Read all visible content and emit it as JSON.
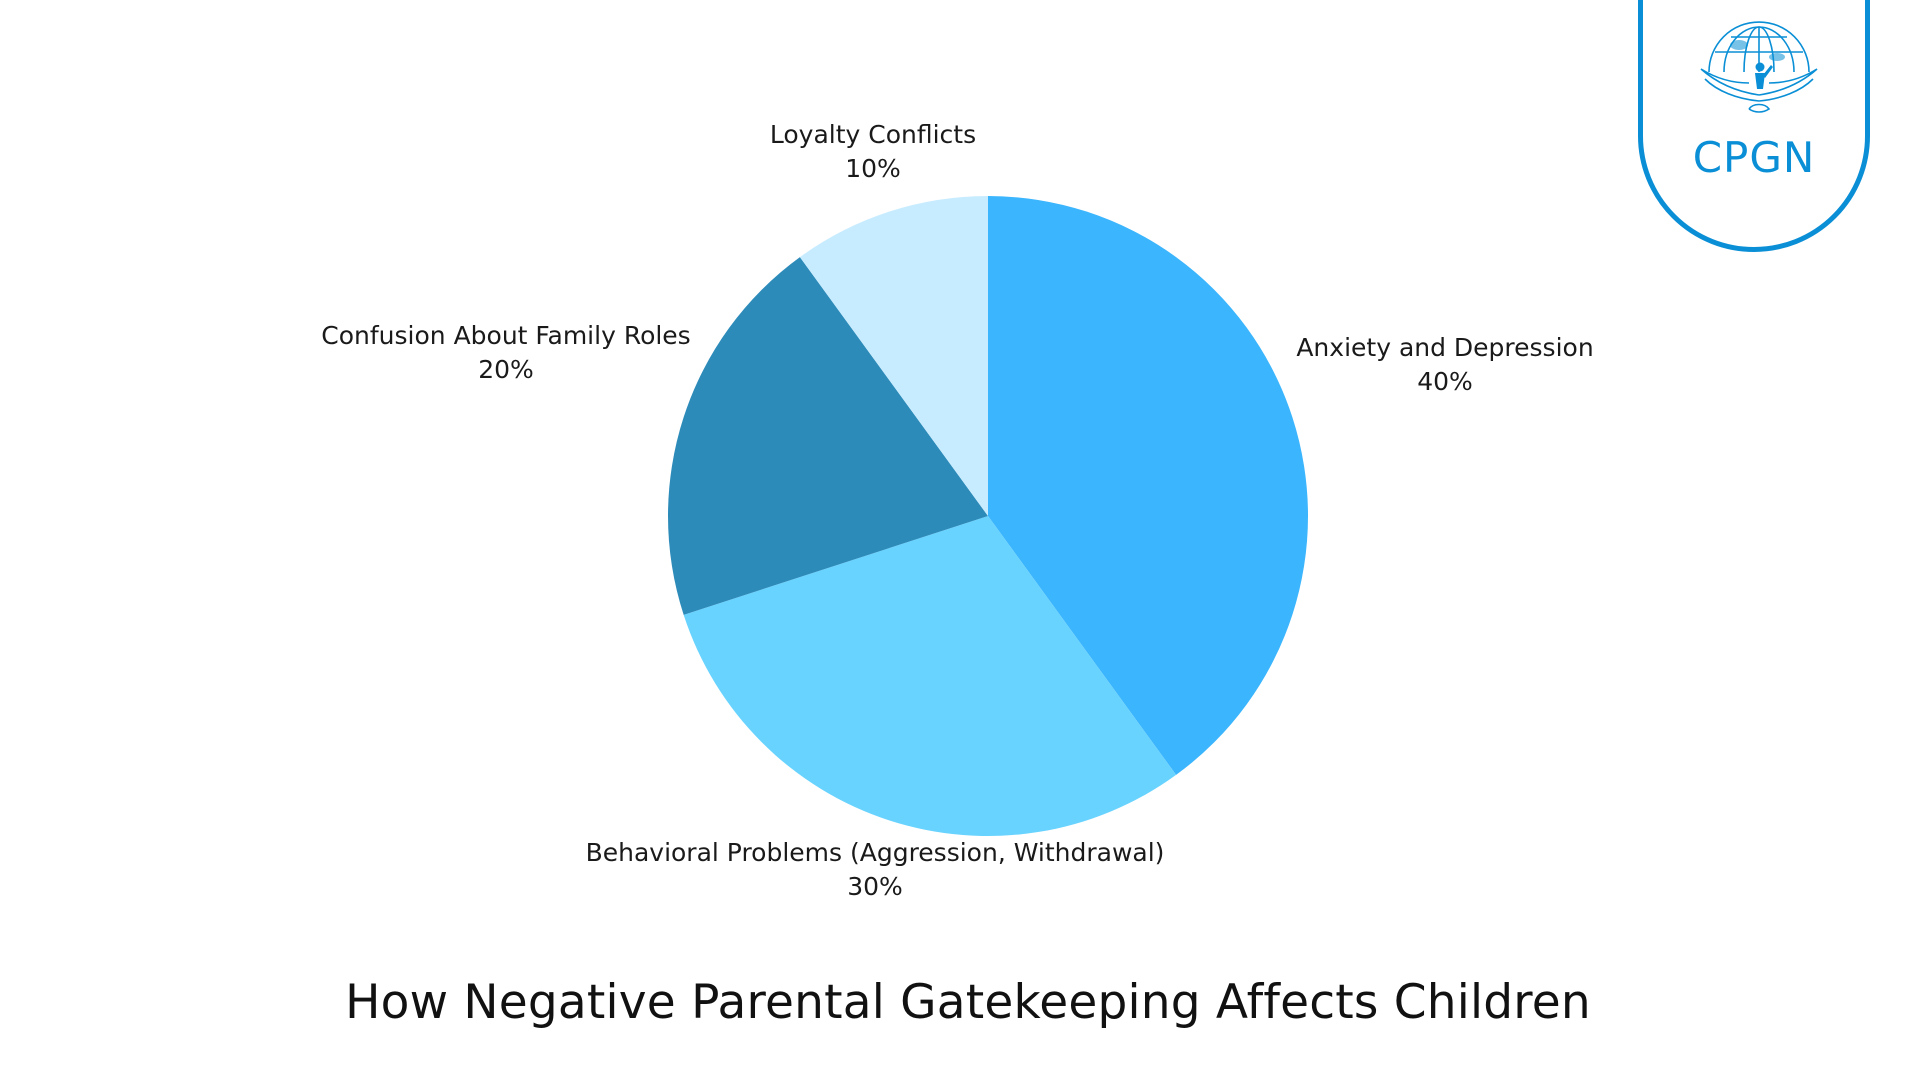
{
  "chart_data": {
    "type": "pie",
    "title": "How Negative Parental Gatekeeping Affects Children",
    "slices": [
      {
        "label": "Anxiety and Depression",
        "value": 40,
        "display": "40%",
        "color": "#3bb5fd"
      },
      {
        "label": "Behavioral Problems (Aggression, Withdrawal)",
        "value": 30,
        "display": "30%",
        "color": "#69d3ff"
      },
      {
        "label": "Confusion About Family Roles",
        "value": 20,
        "display": "20%",
        "color": "#2d8bba"
      },
      {
        "label": "Loyalty Conflicts",
        "value": 10,
        "display": "10%",
        "color": "#c8ecff"
      }
    ]
  },
  "logo": {
    "text": "CPGN",
    "icon": "globe-wings-child-icon",
    "color": "#0a8fd6"
  }
}
